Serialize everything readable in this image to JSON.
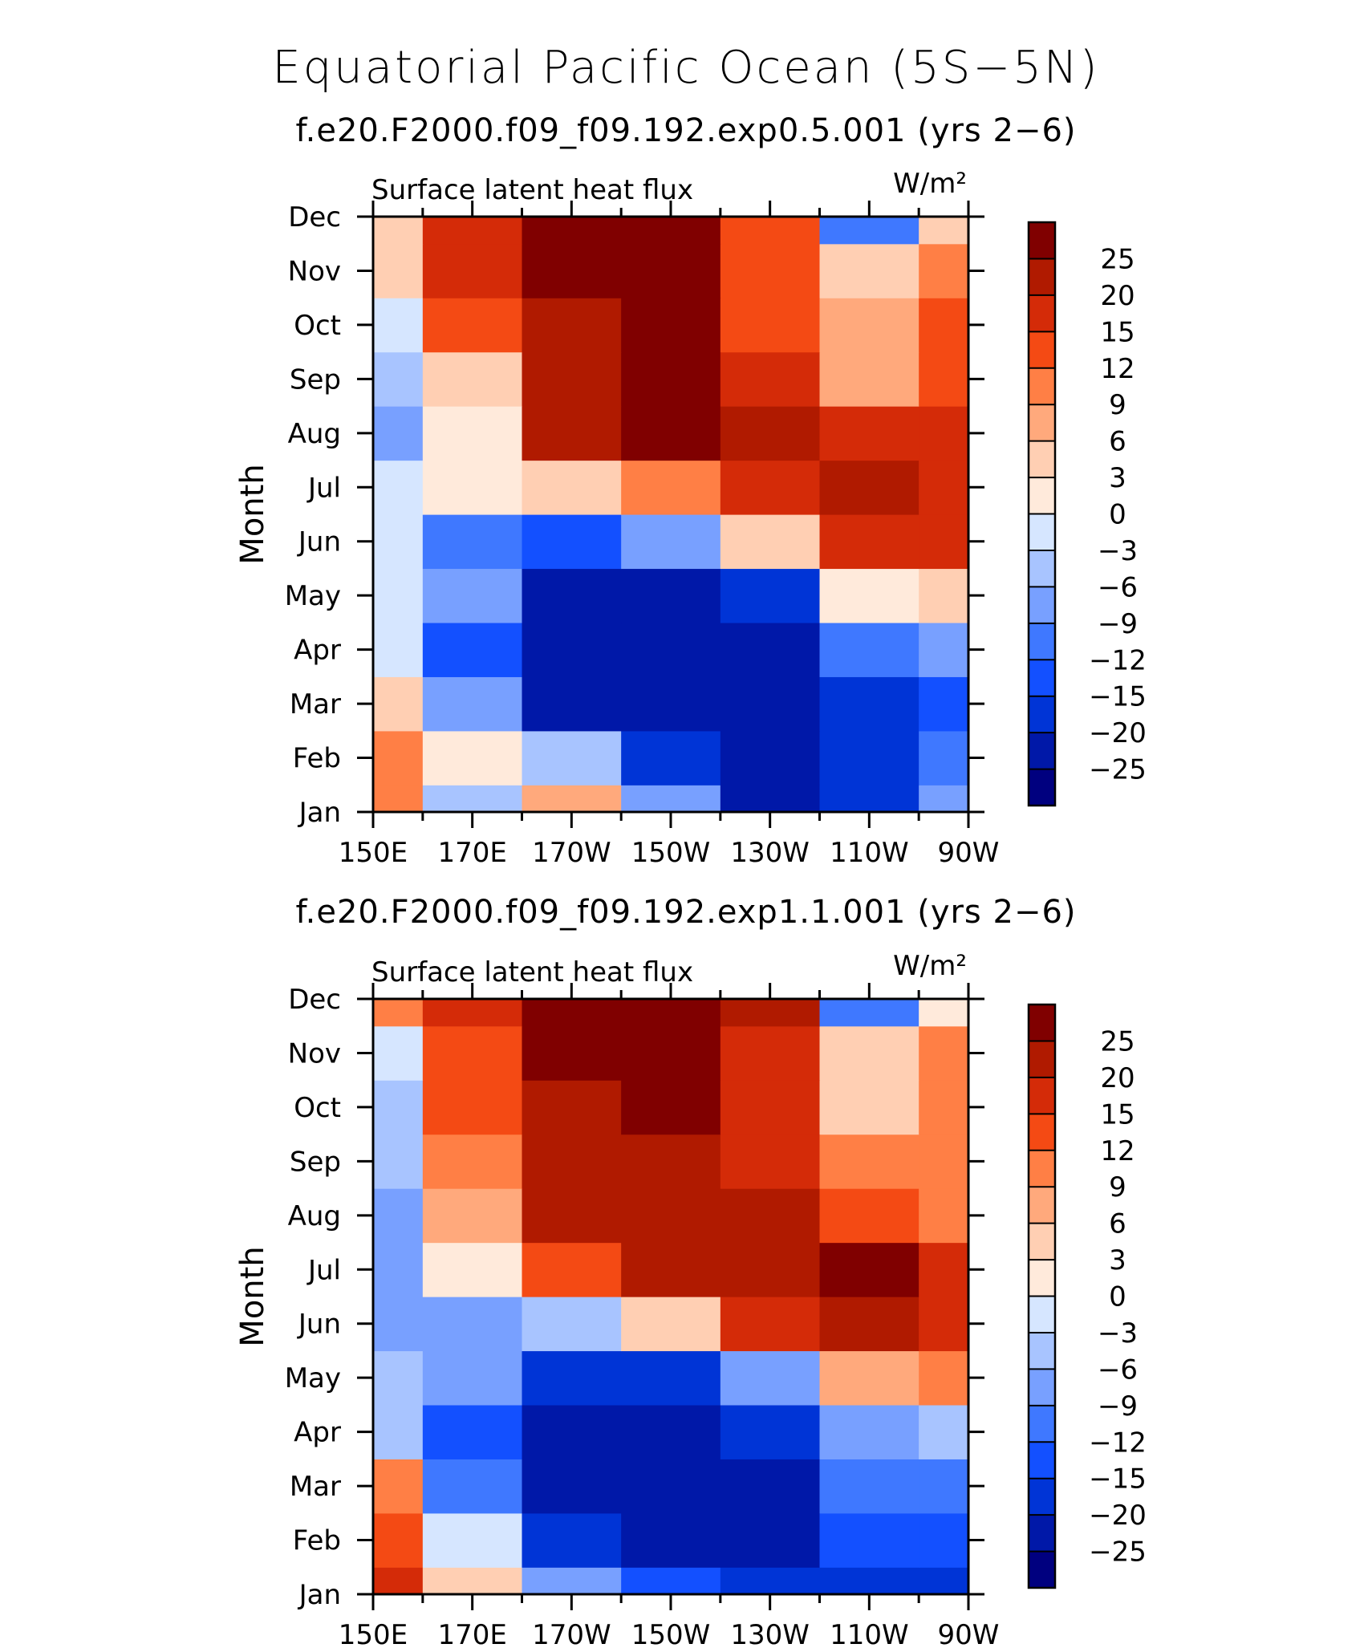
{
  "title": "Equatorial Pacific Ocean (5S−5N)",
  "chart_data": [
    {
      "type": "heatmap",
      "subtitle": "f.e20.F2000.f09_f09.192.exp0.5.001 (yrs 2−6)",
      "left_label": "Surface latent heat flux",
      "right_label": "W/m²",
      "xlabel": "",
      "ylabel": "Month",
      "x": [
        150,
        170,
        190,
        210,
        230,
        250,
        270
      ],
      "x_tick_labels": [
        "150E",
        "170E",
        "170W",
        "150W",
        "130W",
        "110W",
        "90W"
      ],
      "xlim": [
        150,
        270
      ],
      "y_tick_labels": [
        "Jan",
        "Feb",
        "Mar",
        "Apr",
        "May",
        "Jun",
        "Jul",
        "Aug",
        "Sep",
        "Oct",
        "Nov",
        "Dec"
      ],
      "ylim": [
        1,
        12
      ],
      "values": [
        [
          9,
          -6,
          6,
          -9,
          -25,
          -20,
          -9
        ],
        [
          9,
          0,
          -6,
          -20,
          -25,
          -20,
          -12
        ],
        [
          3,
          -9,
          -25,
          -25,
          -25,
          -20,
          -15
        ],
        [
          -3,
          -15,
          -25,
          -25,
          -25,
          -12,
          -9
        ],
        [
          -3,
          -9,
          -25,
          -25,
          -20,
          0,
          3
        ],
        [
          -3,
          -12,
          -15,
          -9,
          3,
          15,
          15
        ],
        [
          -3,
          0,
          3,
          9,
          15,
          20,
          15
        ],
        [
          -9,
          0,
          20,
          25,
          20,
          15,
          15
        ],
        [
          -6,
          3,
          20,
          25,
          15,
          6,
          12
        ],
        [
          -3,
          12,
          20,
          25,
          12,
          6,
          12
        ],
        [
          3,
          15,
          25,
          25,
          12,
          3,
          9
        ],
        [
          3,
          15,
          25,
          25,
          12,
          -12,
          3
        ]
      ],
      "grid": false
    },
    {
      "type": "heatmap",
      "subtitle": "f.e20.F2000.f09_f09.192.exp1.1.001 (yrs 2−6)",
      "left_label": "Surface latent heat flux",
      "right_label": "W/m²",
      "xlabel": "",
      "ylabel": "Month",
      "x": [
        150,
        170,
        190,
        210,
        230,
        250,
        270
      ],
      "x_tick_labels": [
        "150E",
        "170E",
        "170W",
        "150W",
        "130W",
        "110W",
        "90W"
      ],
      "xlim": [
        150,
        270
      ],
      "y_tick_labels": [
        "Jan",
        "Feb",
        "Mar",
        "Apr",
        "May",
        "Jun",
        "Jul",
        "Aug",
        "Sep",
        "Oct",
        "Nov",
        "Dec"
      ],
      "ylim": [
        1,
        12
      ],
      "values": [
        [
          15,
          3,
          -9,
          -15,
          -20,
          -20,
          -20
        ],
        [
          12,
          -3,
          -20,
          -25,
          -25,
          -15,
          -15
        ],
        [
          9,
          -12,
          -25,
          -25,
          -25,
          -12,
          -12
        ],
        [
          -6,
          -15,
          -25,
          -25,
          -20,
          -9,
          -6
        ],
        [
          -6,
          -9,
          -20,
          -20,
          -9,
          6,
          9
        ],
        [
          -9,
          -9,
          -6,
          3,
          15,
          20,
          15
        ],
        [
          -9,
          0,
          12,
          20,
          20,
          25,
          15
        ],
        [
          -9,
          6,
          20,
          20,
          20,
          12,
          9
        ],
        [
          -6,
          9,
          20,
          20,
          15,
          9,
          9
        ],
        [
          -6,
          12,
          20,
          25,
          15,
          3,
          9
        ],
        [
          -3,
          12,
          25,
          25,
          15,
          3,
          9
        ],
        [
          9,
          15,
          25,
          25,
          20,
          -12,
          0
        ]
      ],
      "grid": false
    }
  ],
  "colorbar": {
    "levels": [
      -25,
      -20,
      -15,
      -12,
      -9,
      -6,
      -3,
      0,
      3,
      6,
      9,
      12,
      15,
      20,
      25
    ],
    "labels": [
      "−25",
      "−20",
      "−15",
      "−12",
      "−9",
      "−6",
      "−3",
      "0",
      "3",
      "6",
      "9",
      "12",
      "15",
      "20",
      "25"
    ],
    "colors": [
      "#00007f",
      "#0018a8",
      "#0034d6",
      "#1350ff",
      "#3f78ff",
      "#78a0ff",
      "#a8c4ff",
      "#d6e6ff",
      "#ffeadb",
      "#ffcfb3",
      "#ffa97c",
      "#ff7f45",
      "#f44a14",
      "#d42b08",
      "#b01a00",
      "#800000"
    ]
  }
}
